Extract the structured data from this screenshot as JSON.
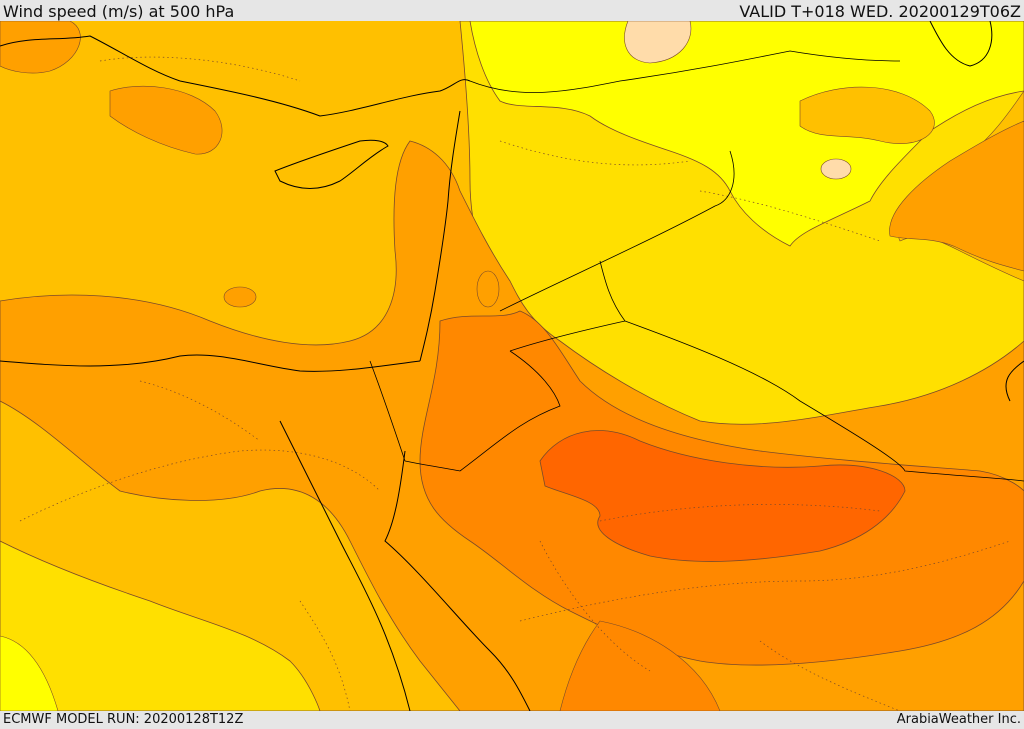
{
  "header": {
    "title": "Wind speed (m/s) at 500 hPa",
    "valid": "VALID T+018 WED. 20200129T06Z"
  },
  "footer": {
    "model_run": "ECMWF MODEL RUN: 20200128T12Z",
    "credit": "ArabiaWeather Inc."
  },
  "colors": {
    "band_1": "#ffff00",
    "band_2": "#ffe000",
    "band_3": "#ffc000",
    "band_4": "#ffa000",
    "band_5": "#ff8800",
    "band_6": "#ff6600",
    "calm": "#ffdcaa",
    "contour": "#7a4a2a",
    "coastline": "#000000"
  }
}
